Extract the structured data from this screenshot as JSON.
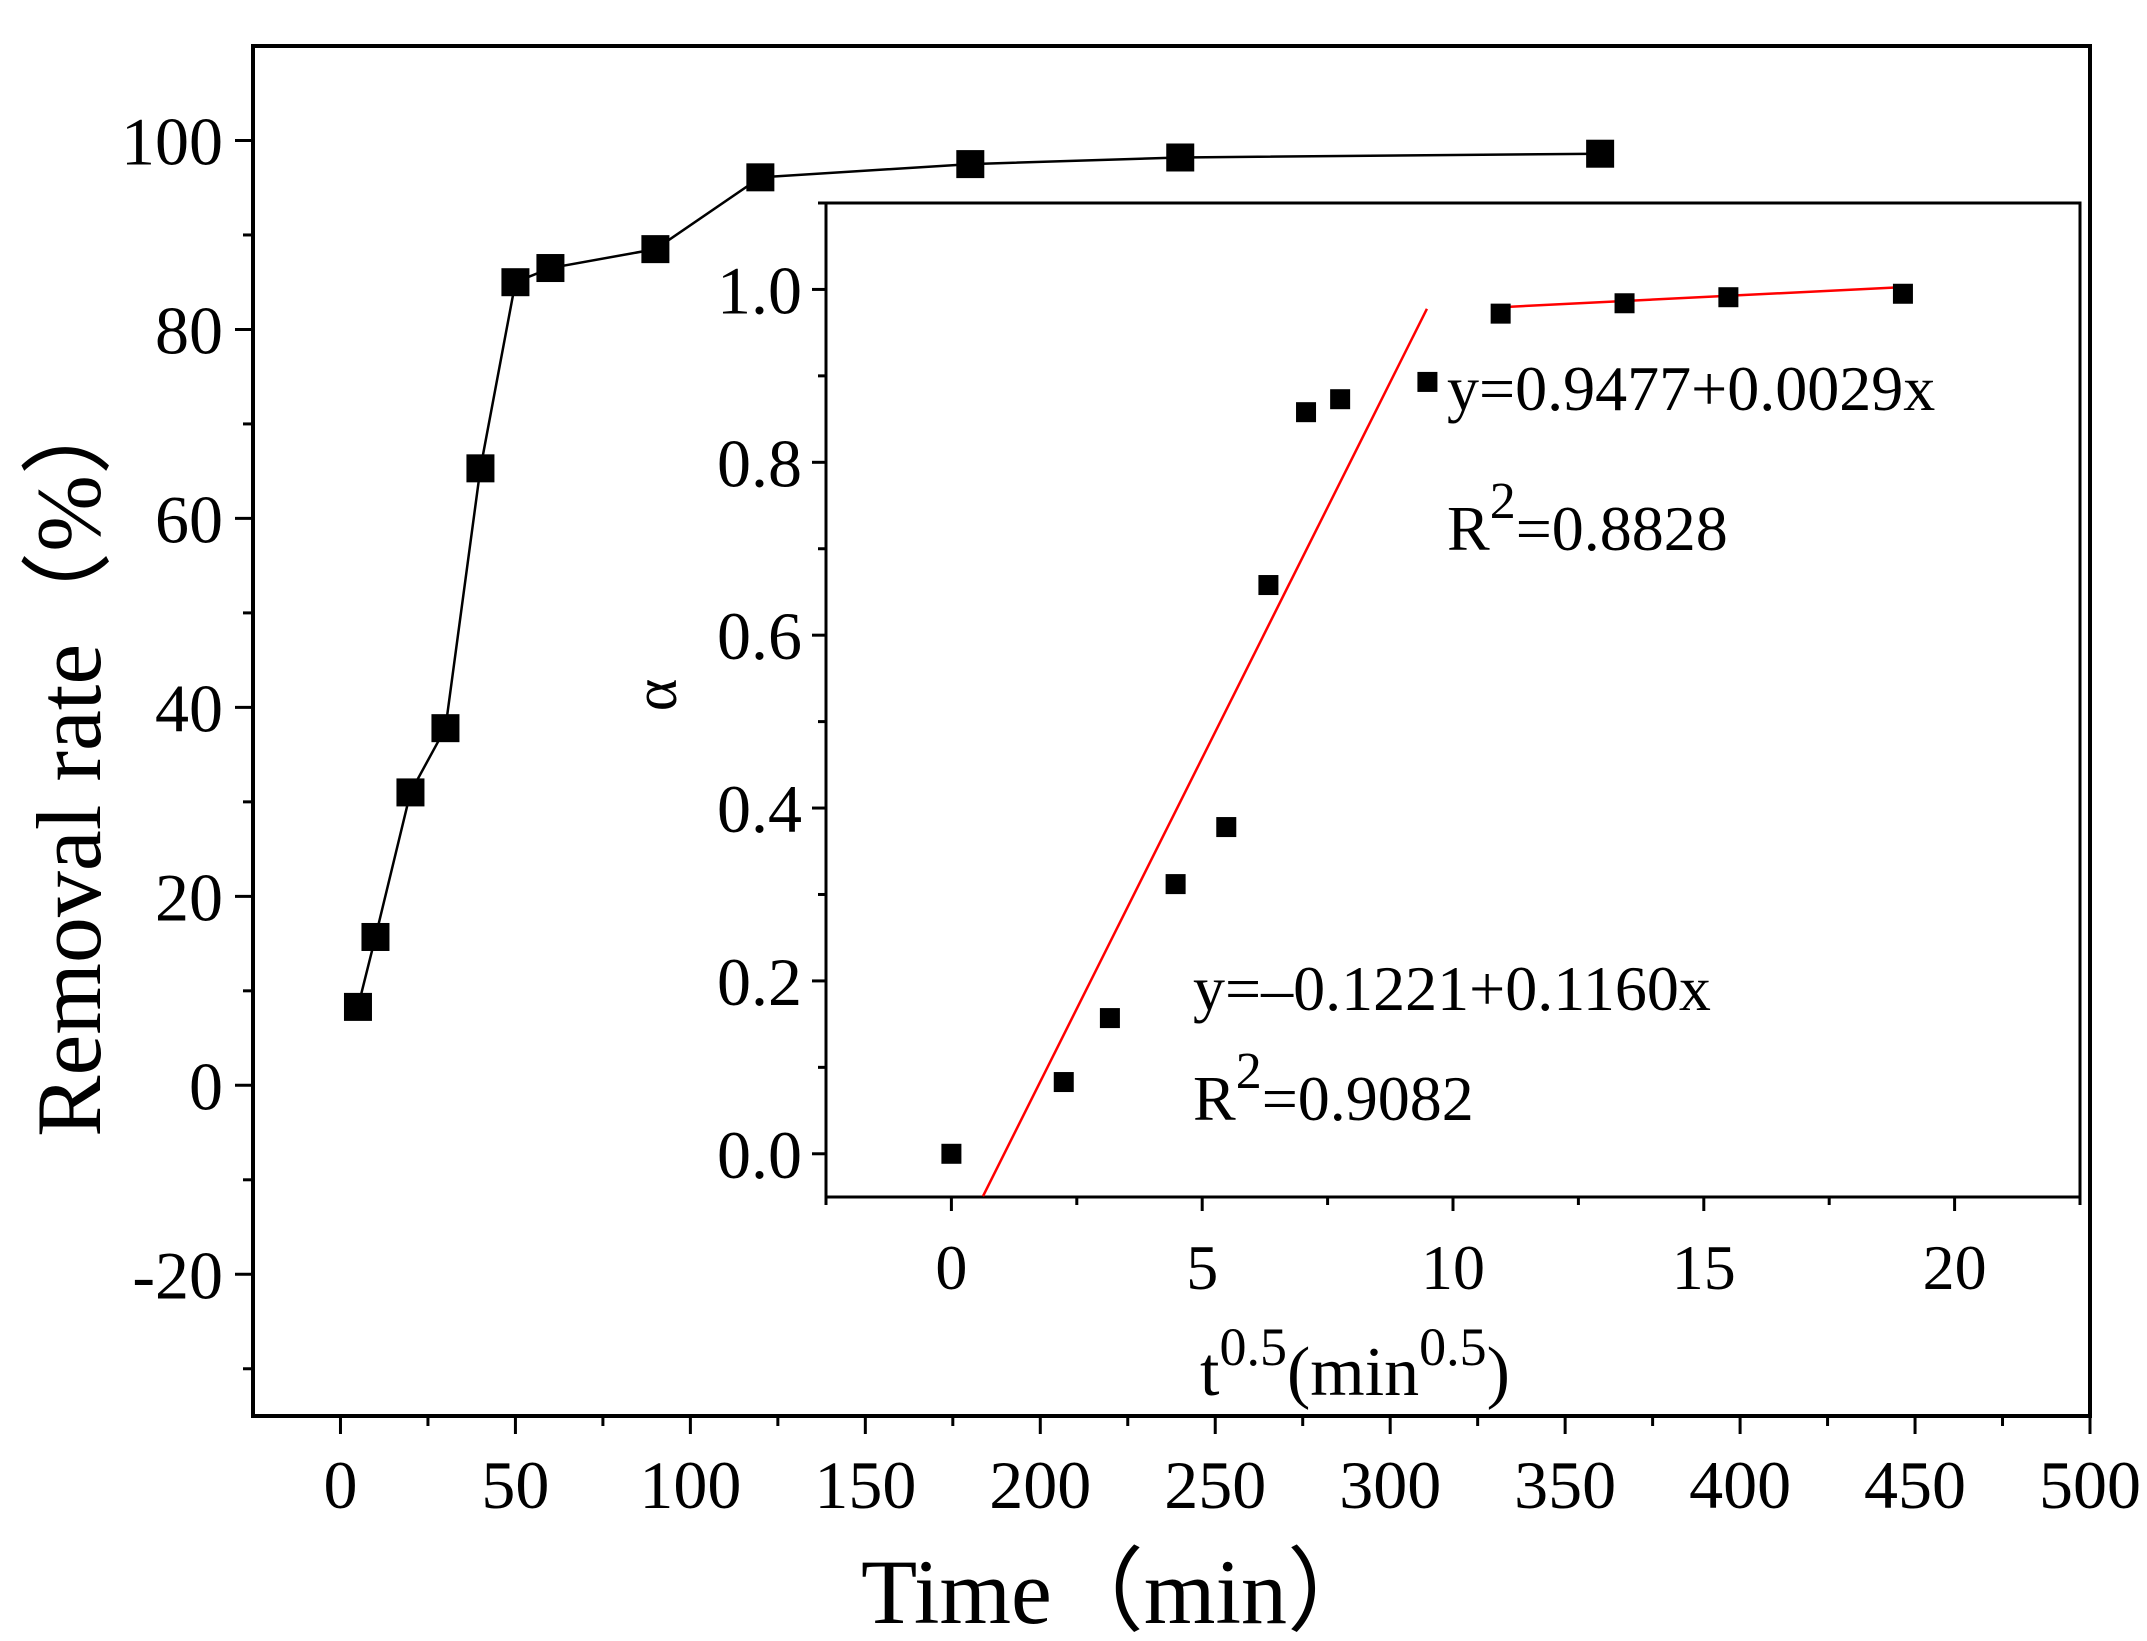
{
  "chart_data": [
    {
      "type": "line",
      "title": "",
      "xlabel": "Time（min）",
      "ylabel": "Removal rate（%）",
      "xlim": [
        -25,
        500
      ],
      "ylim": [
        -35,
        110
      ],
      "xticks": [
        0,
        50,
        100,
        150,
        200,
        250,
        300,
        350,
        400,
        450,
        500
      ],
      "xtick_labels": [
        "0",
        "50",
        "100",
        "150",
        "200",
        "250",
        "300",
        "350",
        "400",
        "450",
        "500"
      ],
      "yticks": [
        -20,
        0,
        20,
        40,
        60,
        80,
        100
      ],
      "ytick_labels": [
        "-20",
        "0",
        "20",
        "40",
        "60",
        "80",
        "100"
      ],
      "grid": false,
      "legend": "none",
      "series": [
        {
          "marker": "square",
          "color": "#000000",
          "x": [
            5,
            10,
            20,
            30,
            40,
            50,
            60,
            90,
            120,
            180,
            240,
            360
          ],
          "y": [
            8.3,
            15.7,
            31.0,
            37.8,
            65.3,
            85.0,
            86.5,
            88.5,
            96.1,
            97.5,
            98.2,
            98.6
          ]
        }
      ]
    },
    {
      "type": "scatter",
      "title": "",
      "xlabel_base": "t",
      "xlabel_sup": "0.5",
      "xlabel_unit": "(min",
      "xlabel_unit_sup": "0.5",
      "xlabel_close": ")",
      "ylabel": "α",
      "xlim": [
        -2.5,
        22.5
      ],
      "ylim": [
        -0.05,
        1.1
      ],
      "xticks": [
        0,
        5,
        10,
        15,
        20
      ],
      "xtick_labels": [
        "0",
        "5",
        "10",
        "15",
        "20"
      ],
      "yticks": [
        0.0,
        0.2,
        0.4,
        0.6,
        0.8,
        1.0
      ],
      "ytick_labels": [
        "0.0",
        "0.2",
        "0.4",
        "0.6",
        "0.8",
        "1.0"
      ],
      "grid": false,
      "legend": "none",
      "series": [
        {
          "marker": "square",
          "color": "#000000",
          "x": [
            0,
            2.24,
            3.16,
            4.47,
            5.48,
            6.32,
            7.07,
            7.75,
            9.49,
            10.95,
            13.42,
            15.49,
            18.97
          ],
          "y": [
            0.0,
            0.083,
            0.157,
            0.312,
            0.378,
            0.658,
            0.858,
            0.873,
            0.893,
            0.972,
            0.984,
            0.991,
            0.995
          ]
        }
      ],
      "fits": [
        {
          "color": "#ff0000",
          "intercept": -0.1221,
          "slope": 0.116,
          "x_range": [
            0.63,
            9.48
          ],
          "equation": "y=–0.1221+0.1160x",
          "r2_base": "R",
          "r2_sup": "2",
          "r2_value": "=0.9082"
        },
        {
          "color": "#ff0000",
          "intercept": 0.9477,
          "slope": 0.0029,
          "x_range": [
            10.95,
            18.97
          ],
          "equation": "y=0.9477+0.0029x",
          "r2_base": "R",
          "r2_sup": "2",
          "r2_value": "=0.8828"
        }
      ]
    }
  ]
}
